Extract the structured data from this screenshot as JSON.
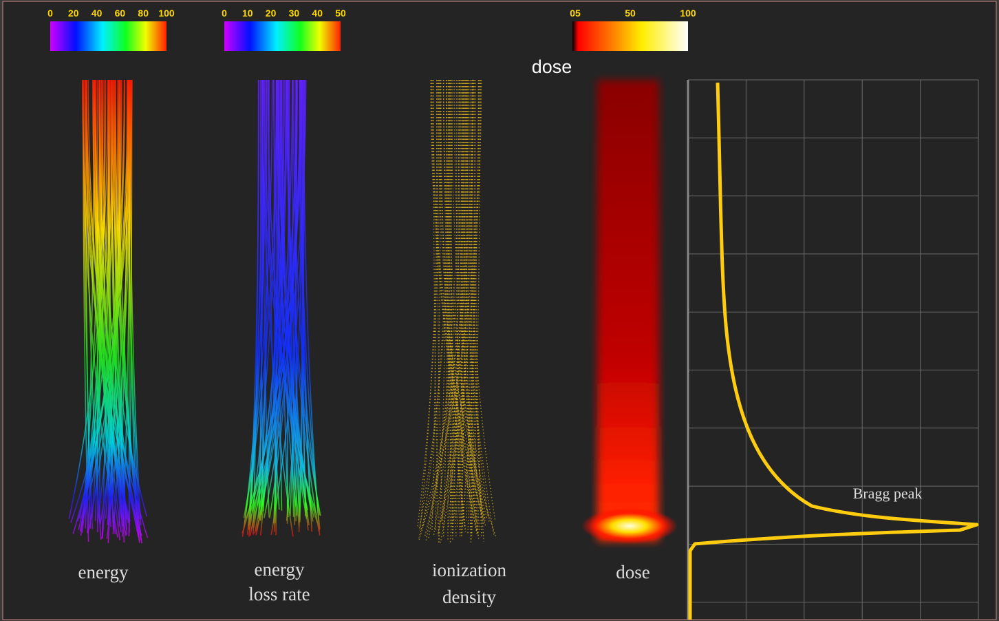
{
  "colorbars": [
    {
      "ticks": [
        "0",
        "20",
        "40",
        "60",
        "80",
        "100"
      ]
    },
    {
      "ticks": [
        "0",
        "10",
        "20",
        "30",
        "40",
        "50"
      ]
    },
    {
      "ticks": [
        "05",
        "50",
        "100"
      ]
    }
  ],
  "heading": "dose",
  "panels": [
    {
      "label": [
        "energy"
      ]
    },
    {
      "label": [
        "energy",
        "loss rate"
      ]
    },
    {
      "label": [
        "ionization",
        "density"
      ]
    },
    {
      "label": [
        "dose"
      ]
    }
  ],
  "plot": {
    "annotation": "Bragg peak"
  }
}
